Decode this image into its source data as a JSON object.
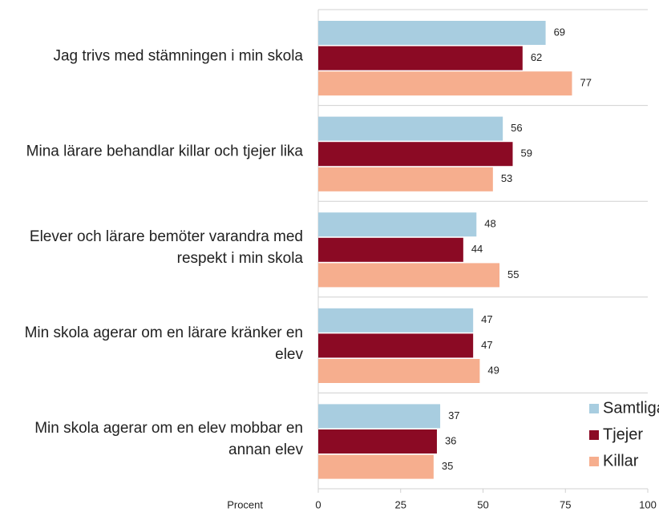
{
  "chart_data": {
    "type": "bar",
    "orientation": "horizontal",
    "categories": [
      "Jag trivs med stämningen i min skola",
      "Mina lärare behandlar killar och tjejer lika",
      "Elever och lärare bemöter varandra med respekt i min skola",
      "Min skola agerar om en lärare kränker en elev",
      "Min skola agerar om en elev mobbar en annan elev"
    ],
    "series": [
      {
        "name": "Samtliga",
        "color": "#a8cde0",
        "values": [
          69,
          56,
          48,
          47,
          37
        ]
      },
      {
        "name": "Tjejer",
        "color": "#8b0a24",
        "values": [
          62,
          59,
          44,
          47,
          36
        ]
      },
      {
        "name": "Killar",
        "color": "#f6ae8e",
        "values": [
          77,
          53,
          55,
          49,
          35
        ]
      }
    ],
    "xlabel": "Procent",
    "xlim": [
      0,
      100
    ],
    "xticks": [
      0,
      25,
      50,
      75,
      100
    ],
    "legend": "lower right"
  }
}
